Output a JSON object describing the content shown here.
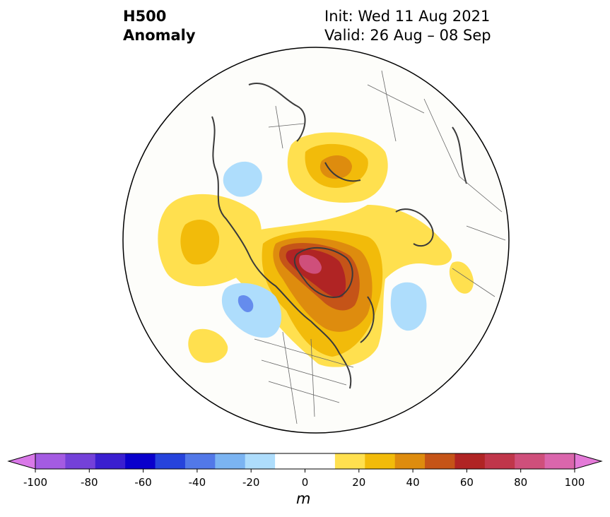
{
  "title": {
    "left_line1": "H500",
    "left_line2": "Anomaly",
    "right_line1": "Init: Wed 11 Aug 2021",
    "right_line2": "Valid: 26 Aug – 08 Sep"
  },
  "colorbar": {
    "unit": "m",
    "ticks": [
      "-100",
      "-80",
      "-60",
      "-40",
      "-20",
      "0",
      "20",
      "40",
      "60",
      "80",
      "100"
    ],
    "colors": [
      "#d978e8",
      "#a45be2",
      "#7441d9",
      "#3a1fd0",
      "#0a00cc",
      "#2643dc",
      "#5278e8",
      "#7bb4f2",
      "#aeddfc",
      "#ffffff",
      "#ffffff",
      "#ffe04f",
      "#f2bb0a",
      "#de8c0e",
      "#c55418",
      "#b02424",
      "#c0364a",
      "#cf4f7b",
      "#da66ac",
      "#e47ad8"
    ],
    "range": [
      -100,
      100
    ]
  },
  "map": {
    "projection": "north-polar-stereographic",
    "background": "#fdfdfa",
    "coastline_color": "#3a3a3a",
    "anomalies": [
      {
        "region": "North Pacific",
        "sign": "positive",
        "max_level": 20
      },
      {
        "region": "Greenland / Canadian Arctic",
        "sign": "positive",
        "max_level": 70
      },
      {
        "region": "Northern Scandinavia / Barents",
        "sign": "positive",
        "max_level": 40
      },
      {
        "region": "Western Europe",
        "sign": "positive",
        "max_level": 10
      },
      {
        "region": "Gulf of Alaska",
        "sign": "negative",
        "max_level": -30
      },
      {
        "region": "Central Asia",
        "sign": "negative",
        "max_level": -20
      },
      {
        "region": "Siberia",
        "sign": "negative",
        "max_level": -20
      },
      {
        "region": "North Atlantic",
        "sign": "negative",
        "max_level": -20
      },
      {
        "region": "Central Pacific",
        "sign": "positive",
        "max_level": 10
      }
    ]
  }
}
